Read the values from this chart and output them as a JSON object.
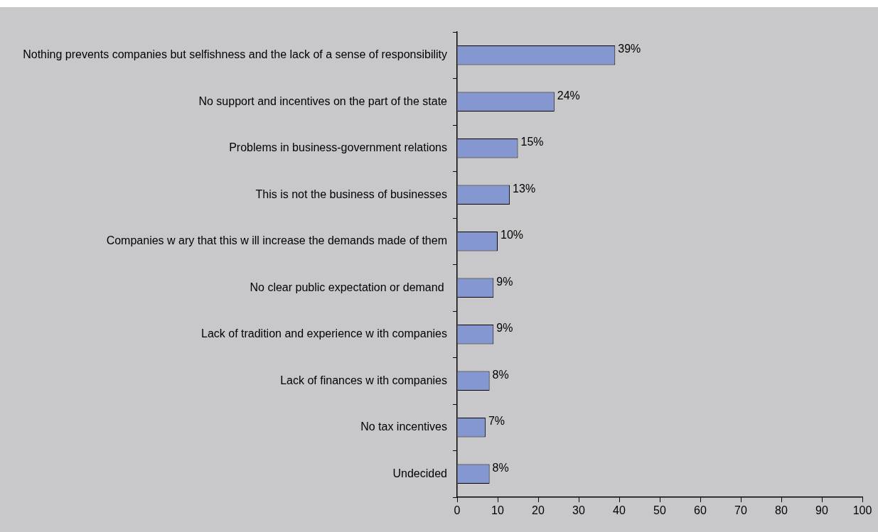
{
  "chart_data": {
    "type": "bar",
    "orientation": "horizontal",
    "categories": [
      "Nothing prevents companies but selfishness and the lack of a sense of responsibility",
      "No support and incentives on the part of the state",
      "Problems in business-government relations",
      "This is not the business of businesses",
      "Companies w ary that this w ill increase the demands made of them",
      "No clear public expectation or demand ",
      "Lack of tradition and experience w ith companies",
      "Lack of finances w ith companies",
      "No tax incentives",
      "Undecided"
    ],
    "values": [
      39,
      24,
      15,
      13,
      10,
      9,
      9,
      8,
      7,
      8
    ],
    "value_labels": [
      "39%",
      "24%",
      "15%",
      "13%",
      "10%",
      "9%",
      "9%",
      "8%",
      "7%",
      "8%"
    ],
    "color": "#8497d0",
    "xlim": [
      0,
      100
    ],
    "xticks": [
      0,
      10,
      20,
      30,
      40,
      50,
      60,
      70,
      80,
      90,
      100
    ],
    "grid": false,
    "legend": false
  }
}
